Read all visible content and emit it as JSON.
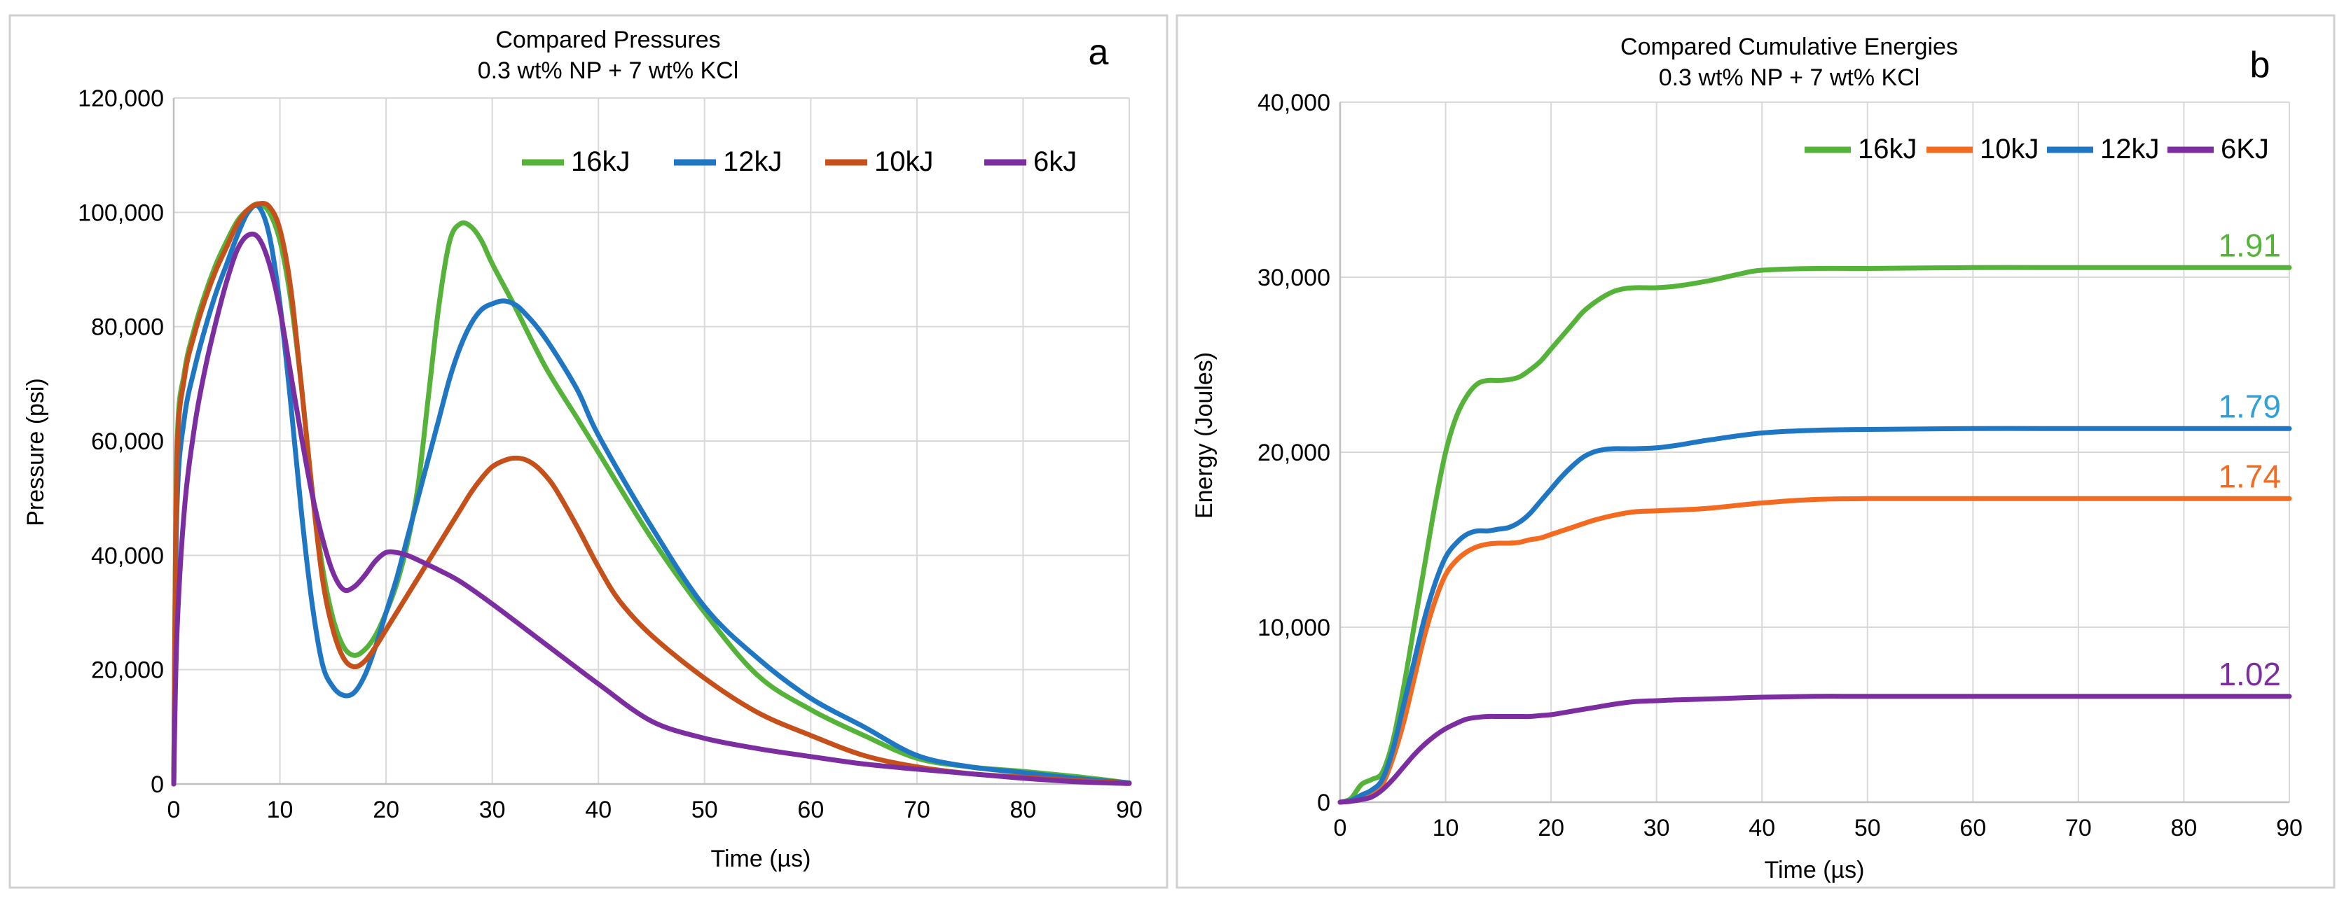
{
  "chart_data": [
    {
      "type": "line",
      "panel_letter": "a",
      "title": "Compared Pressures",
      "subtitle": "0.3 wt% NP + 7 wt% KCl",
      "xlabel": "Time (µs)",
      "ylabel": "Pressure (psi)",
      "xlim": [
        0,
        90
      ],
      "ylim": [
        0,
        120000
      ],
      "x_ticks": [
        "0",
        "10",
        "20",
        "30",
        "40",
        "50",
        "60",
        "70",
        "80",
        "90"
      ],
      "y_ticks": [
        "0",
        "20,000",
        "40,000",
        "60,000",
        "80,000",
        "100,000",
        "120,000"
      ],
      "legend_position": "top-right",
      "series": [
        {
          "name": "16kJ",
          "color": "#56b33a",
          "x": [
            0,
            0.3,
            1,
            2,
            3,
            4,
            5,
            6,
            7,
            8,
            9,
            10,
            11,
            12,
            13,
            14,
            15,
            16,
            17,
            18,
            19,
            20,
            21,
            22,
            23,
            24,
            25,
            26,
            27,
            28,
            29,
            30,
            32,
            35,
            38,
            40,
            45,
            50,
            55,
            60,
            65,
            70,
            75,
            80,
            85,
            90
          ],
          "y": [
            0,
            58000,
            72000,
            80000,
            86000,
            91000,
            95000,
            98500,
            100500,
            101500,
            100000,
            95000,
            85000,
            70000,
            52000,
            38000,
            29000,
            24000,
            22500,
            23500,
            26000,
            30000,
            35000,
            42000,
            52000,
            68000,
            84000,
            95000,
            98000,
            97500,
            95000,
            91000,
            84000,
            73000,
            64000,
            58000,
            43000,
            30000,
            19000,
            13000,
            8500,
            4500,
            3000,
            2200,
            1300,
            200
          ]
        },
        {
          "name": "12kJ",
          "color": "#1f77c4",
          "x": [
            0,
            0.3,
            1,
            2,
            3,
            4,
            5,
            6,
            7,
            8,
            9,
            10,
            11,
            12,
            13,
            14,
            15,
            16,
            17,
            18,
            19,
            20,
            21,
            22,
            23,
            24,
            25,
            26,
            27,
            28,
            29,
            30,
            31,
            32,
            33,
            35,
            38,
            40,
            45,
            50,
            55,
            60,
            65,
            70,
            75,
            80,
            85,
            90
          ],
          "y": [
            0,
            48000,
            64000,
            73000,
            80000,
            86000,
            91000,
            96000,
            100000,
            101000,
            96000,
            84000,
            67000,
            48000,
            32000,
            21000,
            17000,
            15500,
            16000,
            19000,
            24000,
            30000,
            36000,
            43000,
            50000,
            57000,
            64000,
            71000,
            76500,
            80500,
            83000,
            84000,
            84500,
            84000,
            82500,
            78000,
            69000,
            61000,
            45000,
            31000,
            22000,
            15000,
            10000,
            5000,
            3000,
            2000,
            1000,
            200
          ]
        },
        {
          "name": "10kJ",
          "color": "#c5501a",
          "x": [
            0,
            0.3,
            1,
            2,
            3,
            4,
            5,
            6,
            7,
            8,
            9,
            10,
            11,
            12,
            13,
            14,
            15,
            16,
            17,
            18,
            19,
            20,
            21,
            22,
            23,
            24,
            25,
            26,
            27,
            28,
            29,
            30,
            31,
            32,
            33,
            34,
            35,
            36,
            38,
            40,
            42,
            45,
            50,
            55,
            60,
            65,
            70,
            75,
            80,
            85,
            90
          ],
          "y": [
            0,
            56000,
            71000,
            79000,
            85000,
            90000,
            94000,
            98000,
            100500,
            101500,
            101000,
            97000,
            87000,
            70000,
            52000,
            36000,
            27000,
            22000,
            20500,
            21500,
            24000,
            27000,
            30000,
            33000,
            36000,
            39000,
            42000,
            45000,
            48000,
            51000,
            53500,
            55500,
            56500,
            57000,
            56800,
            55800,
            54000,
            51500,
            45000,
            38000,
            32000,
            26000,
            18500,
            12500,
            8500,
            5000,
            3000,
            1800,
            1200,
            600,
            150
          ]
        },
        {
          "name": "6kJ",
          "color": "#7c2ea0",
          "x": [
            0,
            0.3,
            1,
            2,
            3,
            4,
            5,
            6,
            7,
            8,
            9,
            10,
            11,
            12,
            13,
            14,
            15,
            16,
            17,
            18,
            19,
            20,
            21,
            22,
            23,
            24,
            25,
            27,
            30,
            35,
            40,
            45,
            50,
            55,
            60,
            65,
            70,
            75,
            80,
            85,
            90
          ],
          "y": [
            0,
            26000,
            48000,
            63000,
            73000,
            81000,
            88000,
            93500,
            96000,
            95500,
            91000,
            83000,
            72000,
            61000,
            51000,
            43000,
            37000,
            34000,
            34500,
            36500,
            39000,
            40500,
            40500,
            40000,
            39200,
            38300,
            37400,
            35400,
            31500,
            24500,
            17500,
            11000,
            8000,
            6200,
            4800,
            3500,
            2600,
            1800,
            1000,
            400,
            80
          ]
        }
      ]
    },
    {
      "type": "line",
      "panel_letter": "b",
      "title": "Compared Cumulative Energies",
      "subtitle": "0.3 wt% NP + 7 wt% KCl",
      "xlabel": "Time (µs)",
      "ylabel": "Energy (Joules)",
      "xlim": [
        0,
        90
      ],
      "ylim": [
        0,
        40000
      ],
      "x_ticks": [
        "0",
        "10",
        "20",
        "30",
        "40",
        "50",
        "60",
        "70",
        "80",
        "90"
      ],
      "y_ticks": [
        "0",
        "10,000",
        "20,000",
        "30,000",
        "40,000"
      ],
      "legend_position": "top-right",
      "series": [
        {
          "name": "16kJ",
          "color": "#56b33a",
          "end_label": "1.91",
          "x": [
            0,
            1,
            2,
            3,
            4,
            5,
            6,
            7,
            8,
            9,
            10,
            11,
            12,
            13,
            14,
            15,
            16,
            17,
            18,
            19,
            20,
            21,
            22,
            23,
            24,
            25,
            26,
            27,
            28,
            29,
            30,
            32,
            35,
            38,
            40,
            45,
            50,
            60,
            70,
            80,
            90
          ],
          "y": [
            0,
            200,
            1000,
            1300,
            1700,
            3500,
            6500,
            10000,
            13500,
            17000,
            20000,
            22000,
            23200,
            23900,
            24100,
            24100,
            24150,
            24300,
            24700,
            25200,
            25900,
            26600,
            27300,
            28000,
            28500,
            28900,
            29200,
            29350,
            29400,
            29400,
            29400,
            29500,
            29800,
            30200,
            30400,
            30500,
            30500,
            30550,
            30550,
            30550,
            30550
          ]
        },
        {
          "name": "10kJ",
          "color": "#f26b21",
          "x": [
            0,
            1,
            2,
            3,
            4,
            5,
            6,
            7,
            8,
            9,
            10,
            11,
            12,
            13,
            14,
            15,
            16,
            17,
            18,
            19,
            20,
            22,
            24,
            26,
            28,
            30,
            32,
            35,
            40,
            45,
            50,
            60,
            70,
            80,
            90
          ],
          "y": [
            0,
            100,
            300,
            500,
            1000,
            2500,
            4500,
            7000,
            9500,
            11500,
            13000,
            13800,
            14300,
            14600,
            14750,
            14800,
            14800,
            14850,
            15000,
            15100,
            15300,
            15700,
            16100,
            16400,
            16600,
            16650,
            16700,
            16800,
            17100,
            17300,
            17350,
            17350,
            17350,
            17350,
            17350
          ]
        },
        {
          "name": "12kJ",
          "color": "#1f77c4",
          "x": [
            0,
            1,
            2,
            3,
            4,
            5,
            6,
            7,
            8,
            9,
            10,
            11,
            12,
            13,
            14,
            15,
            16,
            17,
            18,
            19,
            20,
            21,
            22,
            23,
            24,
            25,
            26,
            27,
            28,
            30,
            32,
            35,
            40,
            45,
            50,
            60,
            70,
            80,
            90
          ],
          "y": [
            0,
            100,
            400,
            700,
            1300,
            3000,
            5500,
            8000,
            10500,
            12500,
            14000,
            14800,
            15300,
            15500,
            15500,
            15600,
            15700,
            16000,
            16500,
            17200,
            17900,
            18600,
            19200,
            19700,
            20000,
            20150,
            20200,
            20200,
            20200,
            20250,
            20400,
            20700,
            21100,
            21250,
            21300,
            21350,
            21350,
            21350,
            21350
          ]
        },
        {
          "name": "6KJ",
          "color": "#7c2ea0",
          "x": [
            0,
            1,
            2,
            3,
            4,
            5,
            6,
            7,
            8,
            9,
            10,
            11,
            12,
            13,
            14,
            15,
            16,
            17,
            18,
            19,
            20,
            22,
            24,
            26,
            28,
            30,
            32,
            35,
            40,
            45,
            50,
            60,
            70,
            80,
            90
          ],
          "y": [
            0,
            50,
            150,
            300,
            700,
            1300,
            2000,
            2700,
            3300,
            3800,
            4200,
            4500,
            4750,
            4850,
            4900,
            4900,
            4900,
            4900,
            4900,
            4950,
            5000,
            5200,
            5400,
            5600,
            5750,
            5800,
            5850,
            5900,
            6000,
            6050,
            6050,
            6050,
            6050,
            6050,
            6050
          ]
        }
      ],
      "end_label_colors": [
        "#56b33a",
        "#2fa0d8",
        "#f26b21",
        "#7c2ea0"
      ],
      "end_labels": [
        "1.91",
        "1.79",
        "1.74",
        "1.02"
      ]
    }
  ]
}
